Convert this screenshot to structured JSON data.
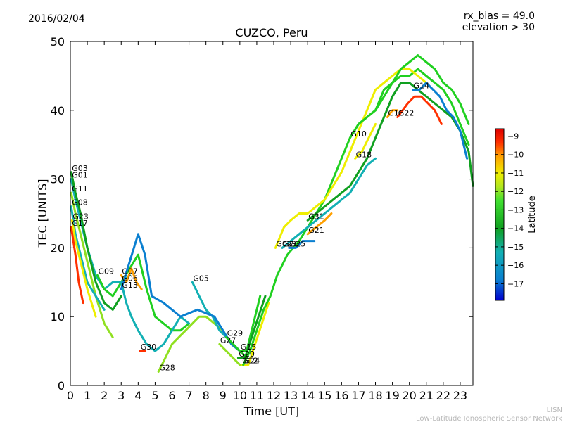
{
  "header": {
    "date": "2016/02/04",
    "rx_bias": "rx_bias = 49.0",
    "elevation": "elevation > 30"
  },
  "footer": {
    "org_short": "LISN",
    "org_full": "Low-Latitude Ionospheric Sensor Network"
  },
  "colors": {
    "palette": [
      "#0000cd",
      "#0a7fd0",
      "#12b0b4",
      "#10a020",
      "#20d020",
      "#90e020",
      "#eeee00",
      "#ffa000",
      "#ff3000",
      "#dd0000"
    ]
  },
  "chart_data": {
    "type": "line",
    "title": "CUZCO, Peru",
    "xlabel": "Time [UT]",
    "ylabel": "TEC [UNITS]",
    "xlim": [
      0,
      23.75
    ],
    "ylim": [
      0,
      50
    ],
    "xticks": [
      0,
      1,
      2,
      3,
      4,
      5,
      6,
      7,
      8,
      9,
      10,
      11,
      12,
      13,
      14,
      15,
      16,
      17,
      18,
      19,
      20,
      21,
      22,
      23
    ],
    "yticks": [
      0,
      10,
      20,
      30,
      40,
      50
    ],
    "grid": false,
    "colorbar": {
      "label": "Latitude",
      "range": [
        -17.9,
        -8.6
      ],
      "ticks": [
        -9,
        -10,
        -11,
        -12,
        -13,
        -14,
        -15,
        -16,
        -17
      ]
    },
    "series": [
      {
        "name": "G01",
        "lat": -15.6,
        "x": [
          0.05,
          0.3,
          0.6,
          1.0,
          1.5,
          2.0,
          2.5,
          3.0,
          3.5
        ],
        "y": [
          30,
          27,
          24,
          20,
          16,
          14,
          15,
          15,
          16
        ]
      },
      {
        "name": "G03",
        "lat": -15.0,
        "x": [
          0.05,
          0.3,
          0.6,
          1.0,
          1.5,
          2.0,
          2.5,
          3.0
        ],
        "y": [
          31,
          28,
          25,
          20,
          15,
          12,
          11,
          13
        ]
      },
      {
        "name": "G11",
        "lat": -13.2,
        "x": [
          0.05,
          0.3,
          0.6,
          1.0,
          1.5,
          2.0,
          2.5
        ],
        "y": [
          28,
          25,
          22,
          18,
          13,
          9,
          7
        ]
      },
      {
        "name": "G08",
        "lat": -16.3,
        "x": [
          0.05,
          0.3,
          0.6,
          1.0,
          1.5,
          2.0
        ],
        "y": [
          26,
          22,
          19,
          15,
          13,
          11
        ]
      },
      {
        "name": "G23",
        "lat": -12.2,
        "x": [
          0.1,
          0.3,
          0.6,
          1.0,
          1.5
        ],
        "y": [
          24,
          21,
          18,
          14,
          10
        ]
      },
      {
        "name": "G17",
        "lat": -9.2,
        "x": [
          0.05,
          0.3,
          0.5,
          0.75
        ],
        "y": [
          23,
          19,
          15,
          12
        ]
      },
      {
        "name": "G09",
        "lat": -13.5,
        "x": [
          1.6,
          2.0,
          2.5,
          3.0,
          3.5,
          4.0,
          4.5,
          5.0,
          5.5,
          6.0,
          6.5,
          7.0
        ],
        "y": [
          16,
          14,
          13,
          15,
          17,
          19,
          14,
          10,
          9,
          8,
          8,
          9
        ]
      },
      {
        "name": "G07",
        "lat": -11.0,
        "x": [
          3.0,
          3.3,
          3.6,
          3.9,
          4.2
        ],
        "y": [
          16,
          15,
          17,
          15,
          14
        ]
      },
      {
        "name": "G06",
        "lat": -15.8,
        "x": [
          3.0,
          3.3,
          3.6,
          4.0,
          4.5,
          5.0,
          5.5,
          6.0,
          6.5,
          7.0
        ],
        "y": [
          15,
          12,
          10,
          8,
          6,
          5,
          6,
          8,
          10,
          9
        ]
      },
      {
        "name": "G30",
        "lat": -9.2,
        "x": [
          4.1,
          4.4
        ],
        "y": [
          5,
          5
        ]
      },
      {
        "name": "G28",
        "lat": -13.0,
        "x": [
          5.2,
          5.6,
          6.0,
          6.4,
          6.8,
          7.2,
          7.6,
          8.0,
          8.5,
          9.0,
          9.5,
          10.0
        ],
        "y": [
          2,
          4,
          6,
          7,
          8,
          9,
          10,
          10,
          9,
          8,
          6,
          5
        ]
      },
      {
        "name": "G05",
        "lat": -16.2,
        "x": [
          7.2,
          7.6,
          8.0,
          8.4,
          8.8,
          9.2,
          9.6,
          10.0
        ],
        "y": [
          15,
          13,
          11,
          10,
          8,
          7,
          6,
          5
        ]
      },
      {
        "name": "G13",
        "lat": -17.3,
        "x": [
          3.0,
          3.5,
          4.0,
          4.4,
          4.8,
          5.5,
          6.5,
          7.5,
          8.5,
          9.5,
          10.0
        ],
        "y": [
          14,
          18,
          22,
          19,
          13,
          12,
          10,
          11,
          10,
          6,
          5
        ]
      },
      {
        "name": "G27",
        "lat": -12.5,
        "x": [
          8.8,
          9.2,
          9.6,
          10.0,
          10.4
        ],
        "y": [
          6,
          5,
          4,
          3,
          3
        ]
      },
      {
        "name": "G29",
        "lat": -14.2,
        "x": [
          9.2,
          9.6,
          10.0,
          10.4
        ],
        "y": [
          7,
          6,
          5,
          4
        ]
      },
      {
        "name": "G15",
        "lat": -13.4,
        "x": [
          10.0,
          10.4,
          10.8,
          11.2
        ],
        "y": [
          5,
          5,
          9,
          13
        ]
      },
      {
        "name": "G20",
        "lat": -14.6,
        "x": [
          9.9,
          10.3,
          10.7,
          11.1,
          11.5
        ],
        "y": [
          4,
          4,
          7,
          10,
          13
        ]
      },
      {
        "name": "G12",
        "lat": -11.8,
        "x": [
          10.1,
          10.5,
          10.9,
          11.3,
          11.7
        ],
        "y": [
          3,
          3,
          6,
          9,
          12
        ]
      },
      {
        "name": "G24",
        "lat": -14.0,
        "x": [
          10.2,
          10.6,
          11.0,
          11.4,
          11.8,
          12.2,
          12.8,
          13.5,
          14.0,
          14.5,
          15.0,
          15.5,
          16.0,
          16.5,
          17.0,
          17.5,
          18.0,
          18.5,
          19.0,
          19.5,
          20.0,
          20.5,
          21.0,
          21.5,
          22.0,
          22.5,
          23.0,
          23.5
        ],
        "y": [
          3,
          5,
          8,
          11,
          13,
          16,
          19,
          21,
          23,
          25,
          27,
          30,
          33,
          36,
          38,
          39,
          40,
          42,
          44,
          45,
          45,
          46,
          45,
          44,
          43,
          41,
          38,
          35
        ]
      },
      {
        "name": "G02",
        "lat": -11.5,
        "x": [
          12.1,
          12.6,
          13.0,
          13.5,
          14.0,
          14.5,
          15.0,
          15.5,
          16.0,
          16.5,
          17.0,
          17.5,
          18.0,
          18.5,
          19.0,
          19.5,
          20.0,
          20.5,
          21.0
        ],
        "y": [
          20,
          23,
          24,
          25,
          25,
          26,
          27,
          29,
          31,
          34,
          37,
          40,
          43,
          44,
          45,
          46,
          46,
          45,
          44
        ]
      },
      {
        "name": "G26",
        "lat": -16.0,
        "x": [
          12.5,
          13.0,
          13.5,
          14.0,
          14.5,
          15.0,
          15.5,
          16.0,
          16.5,
          17.0,
          17.5,
          18.0
        ],
        "y": [
          20,
          21,
          22,
          23,
          24,
          25,
          26,
          27,
          28,
          30,
          32,
          33
        ]
      },
      {
        "name": "G25",
        "lat": -17.1,
        "x": [
          12.9,
          13.3,
          13.7,
          14.0,
          14.4
        ],
        "y": [
          20,
          20,
          21,
          21,
          21
        ]
      },
      {
        "name": "G21",
        "lat": -10.3,
        "x": [
          14.0,
          14.5,
          15.0,
          15.4
        ],
        "y": [
          22,
          23,
          24,
          25
        ]
      },
      {
        "name": "G31",
        "lat": -15.2,
        "x": [
          14.0,
          14.5,
          15.0,
          15.5,
          16.0,
          16.5,
          17.0,
          17.5,
          18.0,
          18.5,
          19.0,
          19.5,
          20.0,
          20.5,
          21.0,
          21.5,
          22.0,
          22.5,
          23.0,
          23.5,
          23.75
        ],
        "y": [
          24,
          25,
          26,
          27,
          28,
          29,
          31,
          33,
          36,
          39,
          42,
          44,
          44,
          43,
          42,
          41,
          40,
          39,
          37,
          34,
          29
        ]
      },
      {
        "name": "G18",
        "lat": -11.4,
        "x": [
          16.8,
          17.2,
          17.6,
          18.0
        ],
        "y": [
          33,
          34,
          36,
          38
        ]
      },
      {
        "name": "G10",
        "lat": -13.8,
        "x": [
          16.5,
          17.0,
          17.5,
          18.0,
          18.5,
          19.0,
          19.5,
          20.0,
          20.5,
          21.0,
          21.5,
          22.0,
          22.5,
          23.0,
          23.5
        ],
        "y": [
          36,
          38,
          39,
          40,
          43,
          44,
          46,
          47,
          48,
          47,
          46,
          44,
          43,
          41,
          38
        ]
      },
      {
        "name": "G16",
        "lat": -10.6,
        "x": [
          18.7,
          19.0,
          19.3
        ],
        "y": [
          39,
          40,
          40
        ]
      },
      {
        "name": "G22",
        "lat": -9.4,
        "x": [
          19.3,
          19.6,
          19.9,
          20.3,
          20.7,
          21.1,
          21.5,
          21.9
        ],
        "y": [
          39,
          40,
          41,
          42,
          42,
          41,
          40,
          38
        ]
      },
      {
        "name": "G14",
        "lat": -17.3,
        "x": [
          20.2,
          20.6,
          21.0,
          21.4,
          21.8,
          22.2,
          22.6,
          23.0,
          23.4
        ],
        "y": [
          43,
          43,
          44,
          43,
          42,
          40,
          39,
          37,
          33
        ]
      }
    ]
  }
}
